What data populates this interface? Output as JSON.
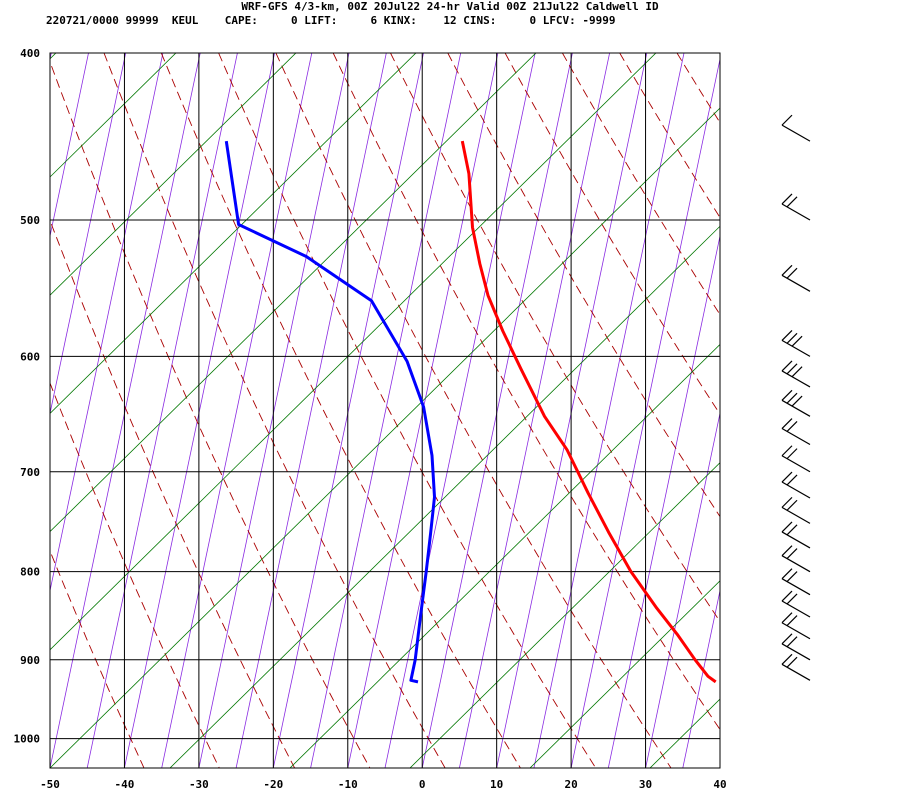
{
  "header": {
    "title": "WRF-GFS 4/3-km, 00Z 20Jul22 24-hr Valid 00Z 21Jul22 Caldwell ID",
    "stats": "220721/0000 99999  KEUL    CAPE:     0 LIFT:     6 KINX:    12 CINS:     0 LFCV: -9999"
  },
  "colors": {
    "temperature": "#ff0000",
    "dewpoint": "#0000ff",
    "dry_adiabat": "#aa0000",
    "isotherm_skewed": "#8a2be2",
    "mixing_ratio": "#007700",
    "grid": "#000000",
    "wind_barb": "#000000"
  },
  "chart_data": {
    "type": "line",
    "chart_kind": "skew-T log-p sounding",
    "xlabel": "",
    "ylabel": "",
    "x_range": [
      -50,
      40
    ],
    "p_range": [
      1040,
      400
    ],
    "y_scale": "log",
    "x_ticks": [
      -50,
      -40,
      -30,
      -20,
      -10,
      0,
      10,
      20,
      30,
      40
    ],
    "p_ticks": [
      400,
      500,
      600,
      700,
      800,
      900,
      1000
    ],
    "grid": true,
    "series": [
      {
        "role": "temperature",
        "points": [
          {
            "p": 927,
            "x": 37.0
          },
          {
            "p": 920,
            "x": 35.8
          },
          {
            "p": 900,
            "x": 33.6
          },
          {
            "p": 870,
            "x": 30.5
          },
          {
            "p": 840,
            "x": 27.0
          },
          {
            "p": 800,
            "x": 22.5
          },
          {
            "p": 760,
            "x": 18.5
          },
          {
            "p": 720,
            "x": 14.5
          },
          {
            "p": 680,
            "x": 10.5
          },
          {
            "p": 650,
            "x": 6.5
          },
          {
            "p": 610,
            "x": 2.0
          },
          {
            "p": 580,
            "x": -1.5
          },
          {
            "p": 553,
            "x": -4.5
          },
          {
            "p": 530,
            "x": -6.5
          },
          {
            "p": 505,
            "x": -8.5
          },
          {
            "p": 470,
            "x": -10.5
          },
          {
            "p": 450,
            "x": -12.3
          }
        ]
      },
      {
        "role": "dewpoint",
        "points": [
          {
            "p": 927,
            "x": -3.0
          },
          {
            "p": 925,
            "x": -4.0
          },
          {
            "p": 900,
            "x": -4.0
          },
          {
            "p": 850,
            "x": -4.5
          },
          {
            "p": 800,
            "x": -5.0
          },
          {
            "p": 760,
            "x": -5.5
          },
          {
            "p": 724,
            "x": -6.0
          },
          {
            "p": 685,
            "x": -7.5
          },
          {
            "p": 642,
            "x": -10.0
          },
          {
            "p": 604,
            "x": -13.5
          },
          {
            "p": 557,
            "x": -20.0
          },
          {
            "p": 525,
            "x": -30.0
          },
          {
            "p": 503,
            "x": -40.0
          },
          {
            "p": 450,
            "x": -44.0
          }
        ]
      }
    ],
    "wind_barbs": [
      {
        "p": 925,
        "barbs": 2
      },
      {
        "p": 900,
        "barbs": 2
      },
      {
        "p": 875,
        "barbs": 2
      },
      {
        "p": 850,
        "barbs": 2
      },
      {
        "p": 825,
        "barbs": 2
      },
      {
        "p": 800,
        "barbs": 2
      },
      {
        "p": 775,
        "barbs": 2
      },
      {
        "p": 750,
        "barbs": 2
      },
      {
        "p": 725,
        "barbs": 2
      },
      {
        "p": 700,
        "barbs": 2
      },
      {
        "p": 675,
        "barbs": 2
      },
      {
        "p": 650,
        "barbs": 3
      },
      {
        "p": 625,
        "barbs": 3
      },
      {
        "p": 600,
        "barbs": 3
      },
      {
        "p": 550,
        "barbs": 2
      },
      {
        "p": 500,
        "barbs": 2
      },
      {
        "p": 450,
        "barbs": 1
      }
    ]
  }
}
